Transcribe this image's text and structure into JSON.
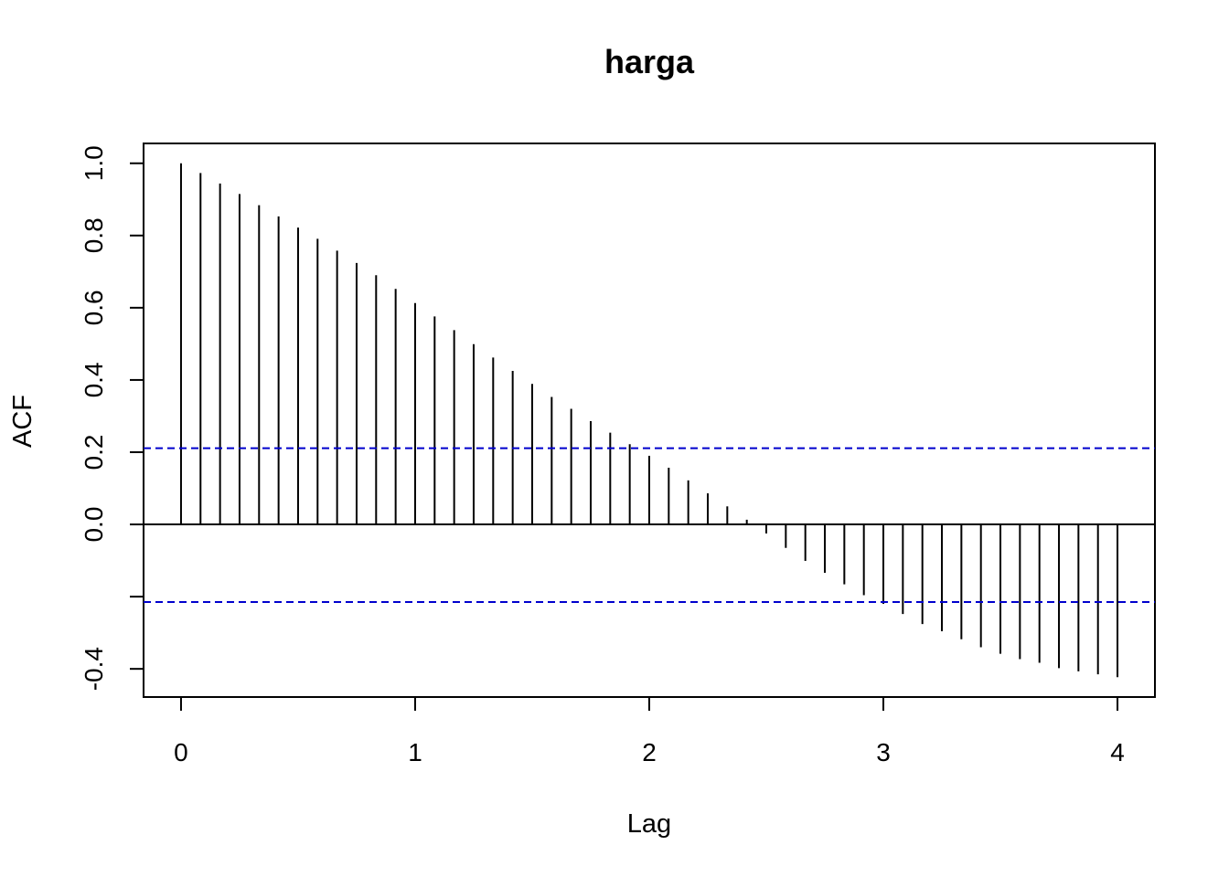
{
  "chart_data": {
    "type": "bar",
    "subtype": "acf-stem",
    "title": "harga",
    "xlabel": "Lag",
    "ylabel": "ACF",
    "x": [
      0.0,
      0.0833,
      0.1667,
      0.25,
      0.3333,
      0.4167,
      0.5,
      0.5833,
      0.6667,
      0.75,
      0.8333,
      0.9167,
      1.0,
      1.0833,
      1.1667,
      1.25,
      1.3333,
      1.4167,
      1.5,
      1.5833,
      1.6667,
      1.75,
      1.8333,
      1.9167,
      2.0,
      2.0833,
      2.1667,
      2.25,
      2.3333,
      2.4167,
      2.5,
      2.5833,
      2.6667,
      2.75,
      2.8333,
      2.9167,
      3.0,
      3.0833,
      3.1667,
      3.25,
      3.3333,
      3.4167,
      3.5,
      3.5833,
      3.6667,
      3.75,
      3.8333,
      3.9167,
      4.0
    ],
    "values": [
      1.0,
      0.973,
      0.944,
      0.915,
      0.884,
      0.853,
      0.822,
      0.791,
      0.758,
      0.724,
      0.69,
      0.652,
      0.613,
      0.576,
      0.538,
      0.499,
      0.462,
      0.425,
      0.389,
      0.353,
      0.32,
      0.286,
      0.254,
      0.222,
      0.19,
      0.157,
      0.122,
      0.086,
      0.05,
      0.013,
      -0.025,
      -0.065,
      -0.101,
      -0.134,
      -0.166,
      -0.196,
      -0.22,
      -0.248,
      -0.276,
      -0.296,
      -0.318,
      -0.34,
      -0.358,
      -0.373,
      -0.383,
      -0.398,
      -0.407,
      -0.415,
      -0.423
    ],
    "ci": [
      0.211,
      -0.215
    ],
    "xlim": [
      -0.16,
      4.16
    ],
    "ylim": [
      -0.478,
      1.055
    ],
    "xticks": [
      0,
      1,
      2,
      3,
      4
    ],
    "xtick_labels": [
      "0",
      "1",
      "2",
      "3",
      "4"
    ],
    "yticks": [
      -0.4,
      -0.2,
      0.0,
      0.2,
      0.4,
      0.6,
      0.8,
      1.0
    ],
    "ytick_labels": [
      "-0.4",
      "",
      "0.0",
      "0.2",
      "0.4",
      "0.6",
      "0.8",
      "1.0"
    ],
    "grid": false,
    "legend": "none",
    "colors": {
      "bars": "#000000",
      "ci": "#0000cd",
      "zero_line": "#000000"
    }
  }
}
